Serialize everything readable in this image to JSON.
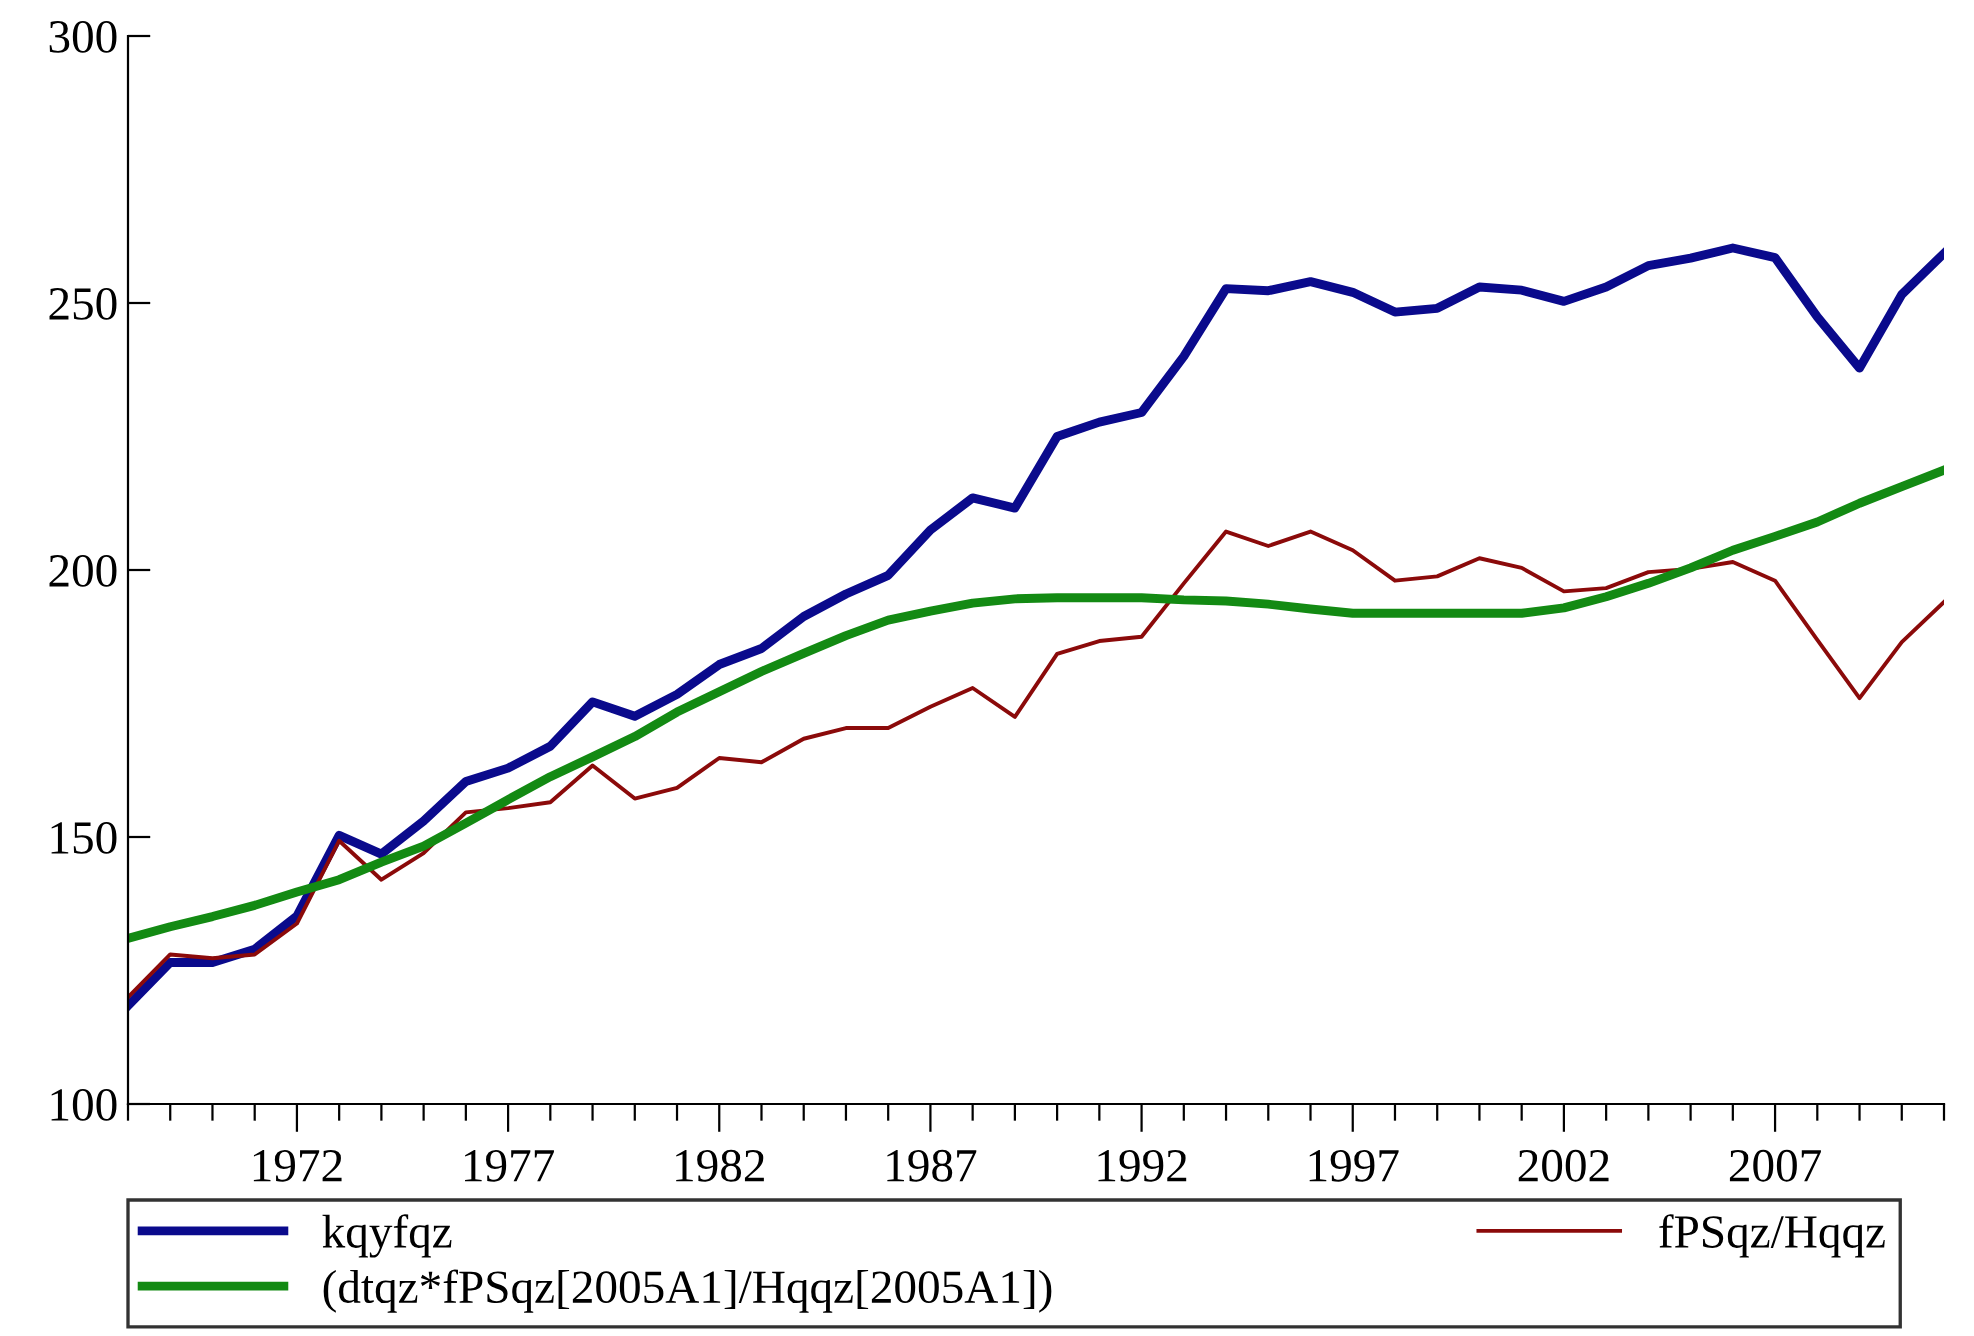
{
  "chart_data": {
    "type": "line",
    "x": [
      1968,
      1969,
      1970,
      1971,
      1972,
      1973,
      1974,
      1975,
      1976,
      1977,
      1978,
      1979,
      1980,
      1981,
      1982,
      1983,
      1984,
      1985,
      1986,
      1987,
      1988,
      1989,
      1990,
      1991,
      1992,
      1993,
      1994,
      1995,
      1996,
      1997,
      1998,
      1999,
      2000,
      2001,
      2002,
      2003,
      2004,
      2005,
      2006,
      2007,
      2008,
      2009,
      2010,
      2011
    ],
    "series": [
      {
        "name": "kqyfqz",
        "color": "#0a0a8c",
        "values": [
          118.4,
          126.5,
          126.5,
          129,
          135.2,
          150.3,
          146.8,
          153,
          160.4,
          162.9,
          167,
          175.3,
          172.6,
          176.7,
          182.3,
          185.3,
          191.3,
          195.5,
          199,
          207.5,
          213.5,
          211.6,
          225,
          227.7,
          229.5,
          240,
          252.7,
          252.3,
          254,
          252,
          248.3,
          249,
          253,
          252.4,
          250.3,
          253,
          257,
          258.4,
          260.3,
          258.5,
          247.4,
          237.8,
          251.6,
          259.3
        ]
      },
      {
        "name": "fPSqz/Hqqz",
        "color": "#8b0a0a",
        "values": [
          120,
          128,
          127.3,
          128,
          133.8,
          149.3,
          142,
          147,
          154.6,
          155.4,
          156.5,
          163.4,
          157.2,
          159.2,
          164.8,
          164,
          168.4,
          170.4,
          170.4,
          174.4,
          177.9,
          172.5,
          184.3,
          186.7,
          187.5,
          197.5,
          207.2,
          204.5,
          207.2,
          203.7,
          198,
          198.8,
          202.2,
          200.4,
          196,
          196.6,
          199.6,
          200.2,
          201.5,
          198,
          186.9,
          176,
          186.5,
          194
        ]
      },
      {
        "name": "(dtqz*fPSqz[2005A1]/Hqqz[2005A1])",
        "color": "#138a13",
        "values": [
          131,
          133.2,
          135.1,
          137.2,
          139.7,
          142,
          145.3,
          148.3,
          152.6,
          157,
          161.3,
          165,
          168.8,
          173.4,
          177.2,
          181,
          184.4,
          187.7,
          190.6,
          192.3,
          193.8,
          194.6,
          194.8,
          194.8,
          194.8,
          194.4,
          194.2,
          193.6,
          192.7,
          191.9,
          191.9,
          191.9,
          191.9,
          191.9,
          192.9,
          195,
          197.5,
          200.4,
          203.7,
          206.3,
          209,
          212.5,
          215.6,
          218.7
        ]
      }
    ],
    "xlim": [
      1968,
      2011
    ],
    "xticks": [
      {
        "value": 1968,
        "label": null
      },
      {
        "value": 1969,
        "label": null
      },
      {
        "value": 1970,
        "label": null
      },
      {
        "value": 1971,
        "label": null
      },
      1972,
      {
        "value": 1973,
        "label": null
      },
      {
        "value": 1974,
        "label": null
      },
      {
        "value": 1975,
        "label": null
      },
      {
        "value": 1976,
        "label": null
      },
      1977,
      {
        "value": 1978,
        "label": null
      },
      {
        "value": 1979,
        "label": null
      },
      {
        "value": 1980,
        "label": null
      },
      {
        "value": 1981,
        "label": null
      },
      1982,
      {
        "value": 1983,
        "label": null
      },
      {
        "value": 1984,
        "label": null
      },
      {
        "value": 1985,
        "label": null
      },
      {
        "value": 1986,
        "label": null
      },
      1987,
      {
        "value": 1988,
        "label": null
      },
      {
        "value": 1989,
        "label": null
      },
      {
        "value": 1990,
        "label": null
      },
      {
        "value": 1991,
        "label": null
      },
      1992,
      {
        "value": 1993,
        "label": null
      },
      {
        "value": 1994,
        "label": null
      },
      {
        "value": 1995,
        "label": null
      },
      {
        "value": 1996,
        "label": null
      },
      1997,
      {
        "value": 1998,
        "label": null
      },
      {
        "value": 1999,
        "label": null
      },
      {
        "value": 2000,
        "label": null
      },
      {
        "value": 2001,
        "label": null
      },
      2002,
      {
        "value": 2003,
        "label": null
      },
      {
        "value": 2004,
        "label": null
      },
      {
        "value": 2005,
        "label": null
      },
      {
        "value": 2006,
        "label": null
      },
      2007,
      {
        "value": 2008,
        "label": null
      },
      {
        "value": 2009,
        "label": null
      },
      {
        "value": 2010,
        "label": null
      },
      {
        "value": 2011,
        "label": null
      }
    ],
    "ylim": [
      100,
      300
    ],
    "yticks": [
      100,
      150,
      200,
      250,
      300
    ],
    "grid": false,
    "legend": "bottom",
    "line_style": "solid",
    "marker": "none"
  }
}
